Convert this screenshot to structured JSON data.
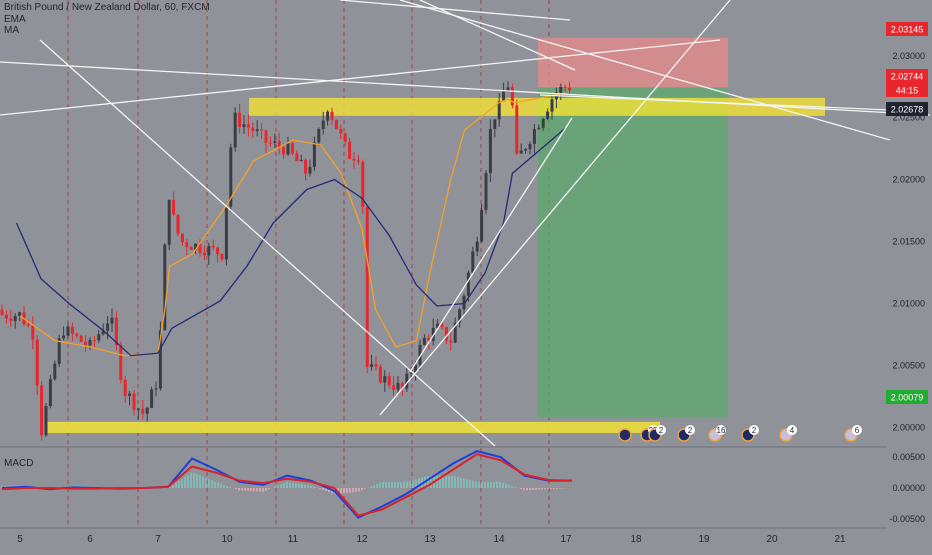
{
  "header": {
    "symbol_line": "British Pound / New Zealand Dollar, 60, FXCM",
    "indicator_1": "EMA",
    "indicator_2": "MA"
  },
  "macd_panel": {
    "label": "MACD",
    "ticks": [
      "0.00500",
      "0.00000",
      "-0.00500"
    ]
  },
  "price_axis": {
    "ticks": [
      "2.03000",
      "2.02500",
      "2.02000",
      "2.01500",
      "2.01000",
      "2.00500",
      "2.00000"
    ],
    "badges": [
      {
        "text": "2.03145",
        "color": "#e8262c"
      },
      {
        "text": "2.02744",
        "color": "#e8262c"
      },
      {
        "text": "44:15",
        "color": "#e8262c"
      },
      {
        "text": "2.02678",
        "color": "#1f2430"
      },
      {
        "text": "2.00079",
        "color": "#22ab31"
      }
    ]
  },
  "time_axis": {
    "labels": [
      "5",
      "6",
      "7",
      "10",
      "11",
      "12",
      "13",
      "14",
      "17",
      "18",
      "19",
      "20",
      "21"
    ]
  },
  "event_markers": [
    {
      "icon": "nz-flag-icon",
      "count": ""
    },
    {
      "icon": "nz-flag-icon",
      "count": "25"
    },
    {
      "icon": "nz-flag-icon",
      "count": "2"
    },
    {
      "icon": "nz-flag-icon",
      "count": "2"
    },
    {
      "icon": "uk-flag-icon",
      "count": "16"
    },
    {
      "icon": "nz-flag-icon",
      "count": "2"
    },
    {
      "icon": "uk-flag-icon",
      "count": "4"
    },
    {
      "icon": "uk-flag-icon",
      "count": "6"
    }
  ],
  "colors": {
    "background": "#8f9298",
    "bull": "#3a3d44",
    "bear": "#e8262c",
    "ema": "#f5a028",
    "ma": "#262a7a",
    "zone": "#f2e236",
    "stop": "#e88a8a",
    "target": "#5fa86d",
    "macd": "#1e3fd8",
    "signal": "#d8232a"
  },
  "chart_data": {
    "type": "candlestick",
    "title": "British Pound / New Zealand Dollar, 60, FXCM",
    "x_days": [
      "5",
      "6",
      "7",
      "10",
      "11",
      "12",
      "13",
      "14",
      "17",
      "18",
      "19",
      "20",
      "21"
    ],
    "ylim": [
      1.9985,
      2.0345
    ],
    "support_zone": [
      1.99955,
      2.00045
    ],
    "resistance_zone": [
      2.02515,
      2.0266
    ],
    "trade": {
      "entry": 2.02744,
      "stop": 2.03145,
      "target": 2.00079
    },
    "last_price": 2.02678,
    "series": [
      {
        "name": "EMA",
        "points": [
          [
            "5",
            2.009
          ],
          [
            "5.5",
            2.007
          ],
          [
            "6",
            2.0065
          ],
          [
            "6.5",
            2.0058
          ],
          [
            "7",
            2.006
          ],
          [
            "7.3",
            2.0095
          ],
          [
            "7.5",
            2.013
          ],
          [
            "8.5",
            2.014
          ],
          [
            "10",
            2.018
          ],
          [
            "10.4",
            2.0215
          ],
          [
            "11",
            2.0232
          ],
          [
            "11.4",
            2.0228
          ],
          [
            "11.7",
            2.0205
          ],
          [
            "12",
            2.016
          ],
          [
            "12.2",
            2.0095
          ],
          [
            "12.5",
            2.0065
          ],
          [
            "12.8",
            2.007
          ],
          [
            "13",
            2.0125
          ],
          [
            "13.3",
            2.02
          ],
          [
            "13.5",
            2.024
          ],
          [
            "14",
            2.0262
          ],
          [
            "14.4",
            2.0265
          ],
          [
            "14.7",
            2.0262
          ],
          [
            "17",
            2.027
          ]
        ]
      },
      {
        "name": "MA",
        "points": [
          [
            "4.95",
            2.0165
          ],
          [
            "5.3",
            2.012
          ],
          [
            "5.7",
            2.01
          ],
          [
            "6.2",
            2.0078
          ],
          [
            "6.6",
            2.0058
          ],
          [
            "7",
            2.006
          ],
          [
            "7.6",
            2.008
          ],
          [
            "9.7",
            2.0102
          ],
          [
            "10.3",
            2.013
          ],
          [
            "10.7",
            2.0165
          ],
          [
            "11.2",
            2.0192
          ],
          [
            "11.6",
            2.02
          ],
          [
            "12",
            2.0185
          ],
          [
            "12.4",
            2.0155
          ],
          [
            "12.8",
            2.0115
          ],
          [
            "13.1",
            2.0098
          ],
          [
            "13.5",
            2.01
          ],
          [
            "13.8",
            2.0125
          ],
          [
            "14.2",
            2.0165
          ],
          [
            "14.6",
            2.0205
          ],
          [
            "17",
            2.0242
          ]
        ]
      }
    ],
    "macd": {
      "ylim": [
        -0.0065,
        0.0065
      ],
      "series": [
        {
          "name": "MACD",
          "values": [
            0.0,
            0.0002,
            -0.0002,
            0.0001,
            0.0,
            -0.0001,
            0.0,
            0.0002,
            0.0048,
            0.003,
            0.001,
            0.0005,
            0.002,
            0.0012,
            -0.0005,
            -0.0048,
            -0.003,
            -0.001,
            0.0015,
            0.004,
            0.006,
            0.005,
            0.002,
            0.0012,
            0.0012
          ]
        },
        {
          "name": "Signal",
          "values": [
            -0.0002,
            0.0,
            0.0,
            -0.0001,
            -0.0001,
            0.0,
            0.0,
            0.0002,
            0.0035,
            0.0025,
            0.0012,
            0.0008,
            0.0015,
            0.001,
            0.0,
            -0.0045,
            -0.0035,
            -0.0015,
            0.0005,
            0.003,
            0.0055,
            0.0045,
            0.0022,
            0.0013,
            0.0012
          ]
        }
      ]
    }
  }
}
